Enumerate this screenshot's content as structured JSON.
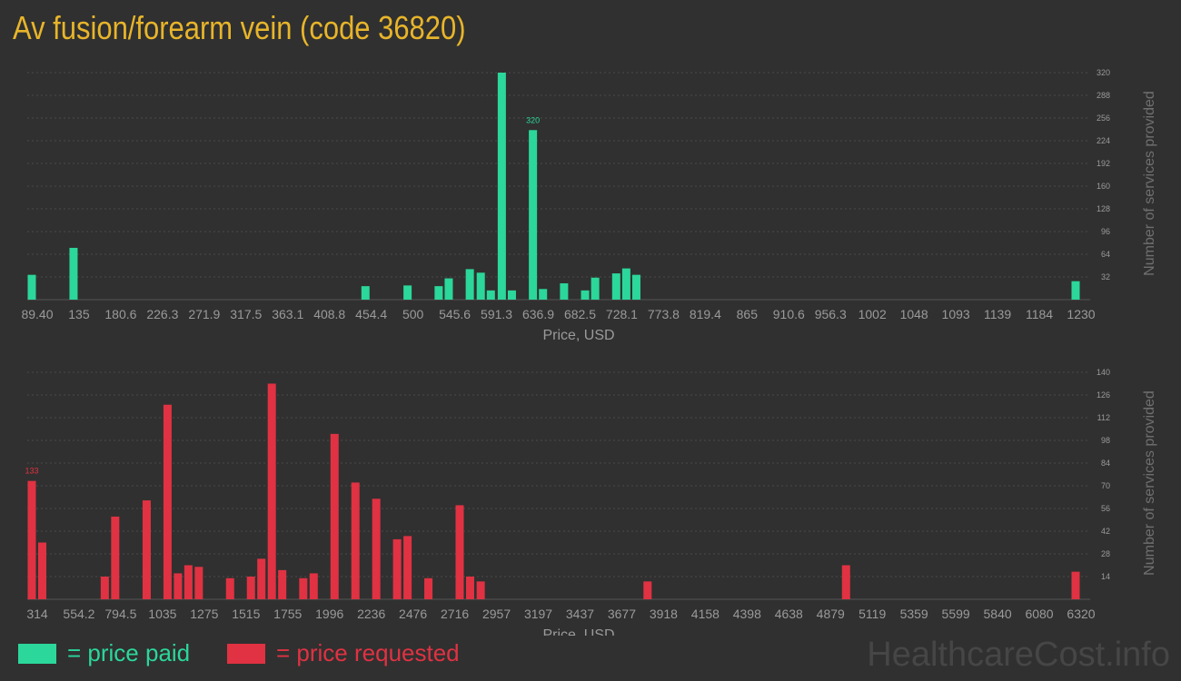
{
  "title": "Av fusion/forearm vein (code 36820)",
  "watermark": "HealthcareCost.info",
  "legend": {
    "paid_label": "= price paid",
    "requested_label": "= price requested"
  },
  "colors": {
    "background": "#303030",
    "paid": "#2bd79a",
    "requested": "#e03242",
    "title": "#e8b52a",
    "axis_text": "#9a9a9a"
  },
  "chart_data": [
    {
      "type": "bar",
      "name": "price paid",
      "xlabel": "Price, USD",
      "ylabel": "Number of services provided",
      "x_ticks": [
        "89.40",
        "135",
        "180.6",
        "226.3",
        "271.9",
        "317.5",
        "363.1",
        "408.8",
        "454.4",
        "500",
        "545.6",
        "591.3",
        "636.9",
        "682.5",
        "728.1",
        "773.8",
        "819.4",
        "865",
        "910.6",
        "956.3",
        "1002",
        "1048",
        "1093",
        "1139",
        "1184",
        "1230"
      ],
      "xlim": [
        89.4,
        1230
      ],
      "y_ticks": [
        32,
        64,
        96,
        128,
        160,
        192,
        224,
        256,
        288,
        320
      ],
      "ylim": [
        0,
        320
      ],
      "peak_label": "320",
      "bars": [
        {
          "x": 89.4,
          "y": 35
        },
        {
          "x": 135,
          "y": 73
        },
        {
          "x": 454,
          "y": 19
        },
        {
          "x": 500,
          "y": 20
        },
        {
          "x": 534,
          "y": 19
        },
        {
          "x": 545,
          "y": 30
        },
        {
          "x": 568,
          "y": 43
        },
        {
          "x": 580,
          "y": 38
        },
        {
          "x": 591,
          "y": 13
        },
        {
          "x": 603,
          "y": 320
        },
        {
          "x": 614,
          "y": 13
        },
        {
          "x": 637,
          "y": 239
        },
        {
          "x": 648,
          "y": 15
        },
        {
          "x": 671,
          "y": 23
        },
        {
          "x": 694,
          "y": 13
        },
        {
          "x": 705,
          "y": 31
        },
        {
          "x": 728,
          "y": 37
        },
        {
          "x": 739,
          "y": 44
        },
        {
          "x": 750,
          "y": 35
        },
        {
          "x": 1230,
          "y": 26
        }
      ]
    },
    {
      "type": "bar",
      "name": "price requested",
      "xlabel": "Price, USD",
      "ylabel": "Number of services provided",
      "x_ticks": [
        "314",
        "554.2",
        "794.5",
        "1035",
        "1275",
        "1515",
        "1755",
        "1996",
        "2236",
        "2476",
        "2716",
        "2957",
        "3197",
        "3437",
        "3677",
        "3918",
        "4158",
        "4398",
        "4638",
        "4879",
        "5119",
        "5359",
        "5599",
        "5840",
        "6080",
        "6320"
      ],
      "xlim": [
        314,
        6320
      ],
      "y_ticks": [
        14,
        28,
        42,
        56,
        70,
        84,
        98,
        112,
        126,
        140
      ],
      "ylim": [
        0,
        140
      ],
      "peak_label": "133",
      "bars": [
        {
          "x": 314,
          "y": 73
        },
        {
          "x": 374,
          "y": 35
        },
        {
          "x": 734,
          "y": 14
        },
        {
          "x": 794,
          "y": 51
        },
        {
          "x": 975,
          "y": 61
        },
        {
          "x": 1095,
          "y": 120
        },
        {
          "x": 1155,
          "y": 16
        },
        {
          "x": 1215,
          "y": 21
        },
        {
          "x": 1275,
          "y": 20
        },
        {
          "x": 1455,
          "y": 13
        },
        {
          "x": 1575,
          "y": 14
        },
        {
          "x": 1635,
          "y": 25
        },
        {
          "x": 1695,
          "y": 133
        },
        {
          "x": 1755,
          "y": 18
        },
        {
          "x": 1876,
          "y": 13
        },
        {
          "x": 1936,
          "y": 16
        },
        {
          "x": 2056,
          "y": 102
        },
        {
          "x": 2176,
          "y": 72
        },
        {
          "x": 2296,
          "y": 62
        },
        {
          "x": 2416,
          "y": 37
        },
        {
          "x": 2476,
          "y": 39
        },
        {
          "x": 2596,
          "y": 13
        },
        {
          "x": 2776,
          "y": 58
        },
        {
          "x": 2836,
          "y": 14
        },
        {
          "x": 2897,
          "y": 11
        },
        {
          "x": 3857,
          "y": 11
        },
        {
          "x": 4999,
          "y": 21
        },
        {
          "x": 6320,
          "y": 17
        }
      ]
    }
  ]
}
